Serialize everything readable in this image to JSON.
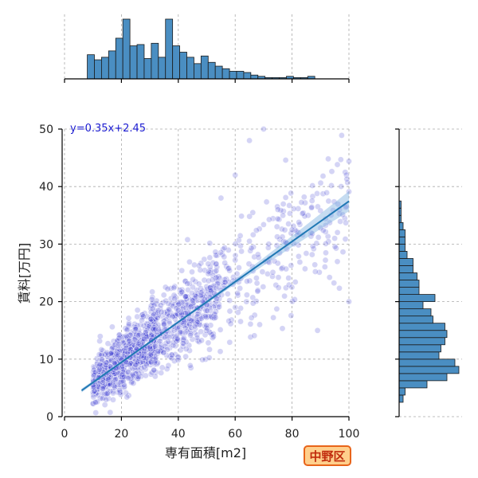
{
  "chart_data": {
    "type": "scatter",
    "title": "",
    "xlabel": "専有面積[m2]",
    "ylabel": "賃料[万円]",
    "xlim": [
      0,
      100
    ],
    "ylim": [
      0,
      50
    ],
    "xticks": [
      "0",
      "20",
      "40",
      "60",
      "80",
      "100"
    ],
    "yticks": [
      "0",
      "10",
      "20",
      "30",
      "40",
      "50"
    ],
    "grid": true,
    "regression": {
      "equation": "y=0.35x+2.45",
      "slope": 0.35,
      "intercept": 2.45,
      "x_range": [
        6,
        100
      ]
    },
    "points_sample": [
      {
        "x": 10,
        "y": 5.5
      },
      {
        "x": 12,
        "y": 6.8
      },
      {
        "x": 15,
        "y": 7.6
      },
      {
        "x": 18,
        "y": 8.4
      },
      {
        "x": 20,
        "y": 9.9
      },
      {
        "x": 22,
        "y": 10.4
      },
      {
        "x": 24,
        "y": 11.2
      },
      {
        "x": 25,
        "y": 9.0
      },
      {
        "x": 26,
        "y": 12.8
      },
      {
        "x": 28,
        "y": 13.5
      },
      {
        "x": 30,
        "y": 12.0
      },
      {
        "x": 32,
        "y": 15.2
      },
      {
        "x": 35,
        "y": 16.0
      },
      {
        "x": 38,
        "y": 17.4
      },
      {
        "x": 40,
        "y": 18.5
      },
      {
        "x": 42,
        "y": 16.8
      },
      {
        "x": 45,
        "y": 20.2
      },
      {
        "x": 48,
        "y": 21.6
      },
      {
        "x": 50,
        "y": 19.4
      },
      {
        "x": 52,
        "y": 23.8
      },
      {
        "x": 55,
        "y": 22.0
      },
      {
        "x": 58,
        "y": 25.4
      },
      {
        "x": 60,
        "y": 27.2
      },
      {
        "x": 62,
        "y": 24.0
      },
      {
        "x": 65,
        "y": 30.5
      },
      {
        "x": 68,
        "y": 28.2
      },
      {
        "x": 70,
        "y": 33.4
      },
      {
        "x": 72,
        "y": 26.8
      },
      {
        "x": 75,
        "y": 36.0
      },
      {
        "x": 78,
        "y": 30.2
      },
      {
        "x": 80,
        "y": 32.5
      },
      {
        "x": 85,
        "y": 28.4
      },
      {
        "x": 90,
        "y": 35.8
      },
      {
        "x": 95,
        "y": 31.0
      },
      {
        "x": 100,
        "y": 44.4
      },
      {
        "x": 100,
        "y": 20.0
      },
      {
        "x": 60,
        "y": 42.0
      },
      {
        "x": 65,
        "y": 48.0
      },
      {
        "x": 70,
        "y": 50.0
      },
      {
        "x": 55,
        "y": 38.0
      }
    ],
    "x_histogram": {
      "bin_start": 8,
      "bin_width": 2.5,
      "counts": [
        19,
        15,
        17,
        22,
        32,
        47,
        26,
        27,
        16,
        28,
        17,
        47,
        26,
        21,
        17,
        12,
        18,
        13,
        10,
        8,
        6,
        6,
        5,
        3,
        2,
        1,
        1,
        1,
        2,
        1,
        1,
        2
      ]
    },
    "y_histogram": {
      "bin_start": 2.5,
      "bin_width": 1.25,
      "counts": [
        2,
        3,
        14,
        24,
        30,
        28,
        20,
        21,
        23,
        24,
        23,
        17,
        16,
        12,
        18,
        10,
        10,
        9,
        7,
        7,
        4,
        3,
        3,
        3,
        2,
        1,
        1,
        1
      ]
    }
  },
  "badge": {
    "text": "中野区"
  }
}
